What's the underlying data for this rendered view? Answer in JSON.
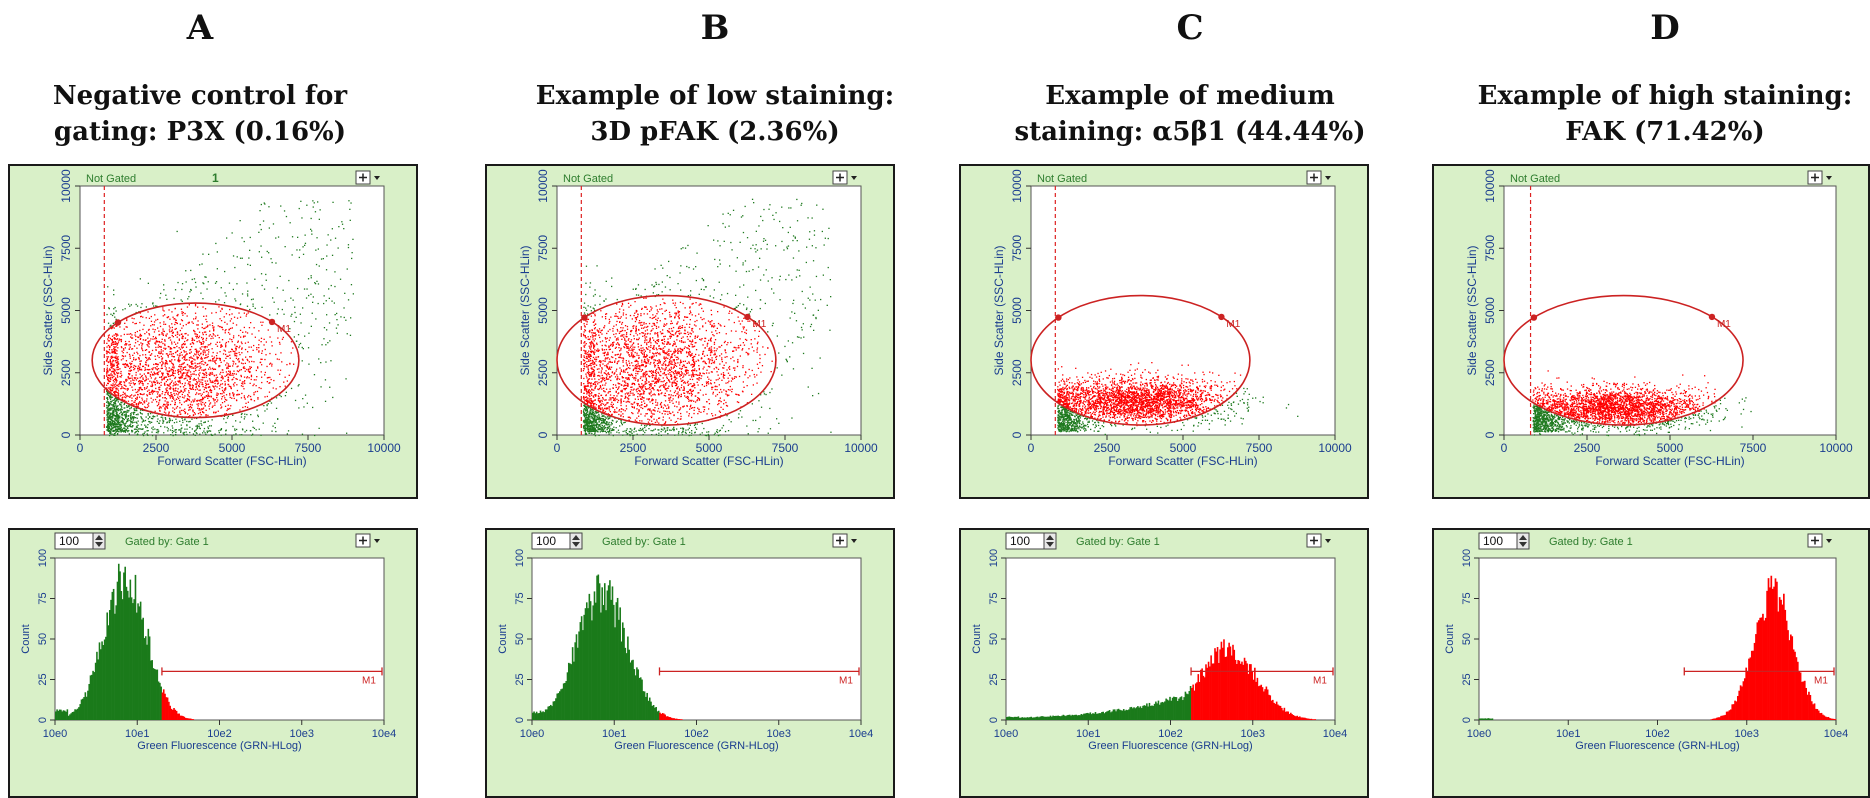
{
  "columns": [
    {
      "letter": "A",
      "title_line1": "Negative control for",
      "title_line2": "gating:  P3X (0.16%)",
      "scatter_header": "Not Gated",
      "scatter_number": "1",
      "histogram_box_value": "100",
      "histogram_header": "Gated by: Gate 1"
    },
    {
      "letter": "B",
      "title_line1": "Example of low staining:",
      "title_line2": "3D pFAK (2.36%)",
      "scatter_header": "Not Gated",
      "scatter_number": "",
      "histogram_box_value": "100",
      "histogram_header": "Gated by: Gate 1"
    },
    {
      "letter": "C",
      "title_line1": "Example of medium",
      "title_line2": "staining: α5β1 (44.44%)",
      "scatter_header": "Not Gated",
      "scatter_number": "",
      "histogram_box_value": "100",
      "histogram_header": "Gated by: Gate 1"
    },
    {
      "letter": "D",
      "title_line1": "Example of high staining:",
      "title_line2": "FAK (71.42%)",
      "scatter_header": "Not Gated",
      "scatter_number": "",
      "histogram_box_value": "100",
      "histogram_header": "Gated by: Gate 1"
    }
  ],
  "colors": {
    "panel_background": "#d9f0c8",
    "plot_background": "#ffffff",
    "ungated_events": "#1f7a1f",
    "gated_events": "#ff0000",
    "gate_line": "#cc2222",
    "histogram_negative": "#1a7a1a",
    "histogram_positive": "#ff0000",
    "header_text": "#2e7d2e"
  },
  "chart_data": [
    {
      "type": "scatter",
      "panel": "A",
      "xlabel": "Forward Scatter (FSC-HLin)",
      "ylabel": "Side Scatter (SSC-HLin)",
      "xlim": [
        0,
        10000
      ],
      "ylim": [
        0,
        10000
      ],
      "xticks": [
        "0",
        "2500",
        "5000",
        "7500",
        "10000"
      ],
      "yticks": [
        "0",
        "2500",
        "5000",
        "7500",
        "10000"
      ],
      "threshold_x": 800,
      "gate": {
        "label": "M1",
        "center": [
          3800,
          3000
        ],
        "radii": [
          3400,
          2300
        ]
      },
      "events": {
        "center": [
          3000,
          2400
        ],
        "spread": [
          1800,
          1300
        ],
        "gated_fraction": 0.75,
        "background_scatter": true
      }
    },
    {
      "type": "scatter",
      "panel": "B",
      "xlabel": "Forward Scatter (FSC-HLin)",
      "ylabel": "Side Scatter (SSC-HLin)",
      "xlim": [
        0,
        10000
      ],
      "ylim": [
        0,
        10000
      ],
      "xticks": [
        "0",
        "2500",
        "5000",
        "7500",
        "10000"
      ],
      "yticks": [
        "0",
        "2500",
        "5000",
        "7500",
        "10000"
      ],
      "threshold_x": 800,
      "gate": {
        "label": "M1",
        "center": [
          3600,
          3000
        ],
        "radii": [
          3600,
          2600
        ]
      },
      "events": {
        "center": [
          3000,
          2600
        ],
        "spread": [
          1700,
          1400
        ],
        "gated_fraction": 0.8,
        "background_scatter": true
      }
    },
    {
      "type": "scatter",
      "panel": "C",
      "xlabel": "Forward Scatter (FSC-HLin)",
      "ylabel": "Side Scatter (SSC-HLin)",
      "xlim": [
        0,
        10000
      ],
      "ylim": [
        0,
        10000
      ],
      "xticks": [
        "0",
        "2500",
        "5000",
        "7500",
        "10000"
      ],
      "yticks": [
        "0",
        "2500",
        "5000",
        "7500",
        "10000"
      ],
      "threshold_x": 800,
      "gate": {
        "label": "M1",
        "center": [
          3600,
          3000
        ],
        "radii": [
          3600,
          2600
        ]
      },
      "events": {
        "center": [
          3500,
          1400
        ],
        "spread": [
          1500,
          450
        ],
        "gated_fraction": 0.85,
        "background_scatter": false
      }
    },
    {
      "type": "scatter",
      "panel": "D",
      "xlabel": "Forward Scatter (FSC-HLin)",
      "ylabel": "Side Scatter (SSC-HLin)",
      "xlim": [
        0,
        10000
      ],
      "ylim": [
        0,
        10000
      ],
      "xticks": [
        "0",
        "2500",
        "5000",
        "7500",
        "10000"
      ],
      "yticks": [
        "0",
        "2500",
        "5000",
        "7500",
        "10000"
      ],
      "threshold_x": 800,
      "gate": {
        "label": "M1",
        "center": [
          3600,
          3000
        ],
        "radii": [
          3600,
          2600
        ]
      },
      "events": {
        "center": [
          3400,
          1100
        ],
        "spread": [
          1300,
          400
        ],
        "gated_fraction": 0.85,
        "background_scatter": false
      }
    },
    {
      "type": "area",
      "panel": "A",
      "xlabel": "Green Fluorescence (GRN-HLog)",
      "ylabel": "Count",
      "xscale": "log",
      "xlim": [
        "10e0",
        "10e4"
      ],
      "ylim": [
        0,
        100
      ],
      "xticks": [
        "10e0",
        "10e1",
        "10e2",
        "10e3",
        "10e4"
      ],
      "yticks": [
        "0",
        "25",
        "50",
        "75",
        "100"
      ],
      "marker": {
        "label": "M1",
        "x_start_log10": 1.3,
        "x_end_log10": 4.0,
        "y": 30
      },
      "peak": {
        "log10_center": 0.85,
        "height": 88,
        "width_decades": 0.26
      },
      "baseline_height": 6
    },
    {
      "type": "area",
      "panel": "B",
      "xlabel": "Green Fluorescence (GRN-HLog)",
      "ylabel": "Count",
      "xscale": "log",
      "xlim": [
        "10e0",
        "10e4"
      ],
      "ylim": [
        0,
        100
      ],
      "xticks": [
        "10e0",
        "10e1",
        "10e2",
        "10e3",
        "10e4"
      ],
      "yticks": [
        "0",
        "25",
        "50",
        "75",
        "100"
      ],
      "marker": {
        "label": "M1",
        "x_start_log10": 1.55,
        "x_end_log10": 4.0,
        "y": 30
      },
      "peak": {
        "log10_center": 0.85,
        "height": 80,
        "width_decades": 0.3
      },
      "baseline_height": 5
    },
    {
      "type": "area",
      "panel": "C",
      "xlabel": "Green Fluorescence (GRN-HLog)",
      "ylabel": "Count",
      "xscale": "log",
      "xlim": [
        "10e0",
        "10e4"
      ],
      "ylim": [
        0,
        100
      ],
      "xticks": [
        "10e0",
        "10e1",
        "10e2",
        "10e3",
        "10e4"
      ],
      "yticks": [
        "0",
        "25",
        "50",
        "75",
        "100"
      ],
      "marker": {
        "label": "M1",
        "x_start_log10": 2.25,
        "x_end_log10": 4.0,
        "y": 30
      },
      "peak": {
        "log10_center": 2.7,
        "height": 44,
        "width_decades": 0.35,
        "left_tail": true
      },
      "baseline_height": 2
    },
    {
      "type": "area",
      "panel": "D",
      "xlabel": "Green Fluorescence (GRN-HLog)",
      "ylabel": "Count",
      "xscale": "log",
      "xlim": [
        "10e0",
        "10e4"
      ],
      "ylim": [
        0,
        100
      ],
      "xticks": [
        "10e0",
        "10e1",
        "10e2",
        "10e3",
        "10e4"
      ],
      "yticks": [
        "0",
        "25",
        "50",
        "75",
        "100"
      ],
      "marker": {
        "label": "M1",
        "x_start_log10": 2.3,
        "x_end_log10": 4.0,
        "y": 30
      },
      "peak": {
        "log10_center": 3.3,
        "height": 80,
        "width_decades": 0.22
      },
      "baseline_height": 1
    }
  ]
}
